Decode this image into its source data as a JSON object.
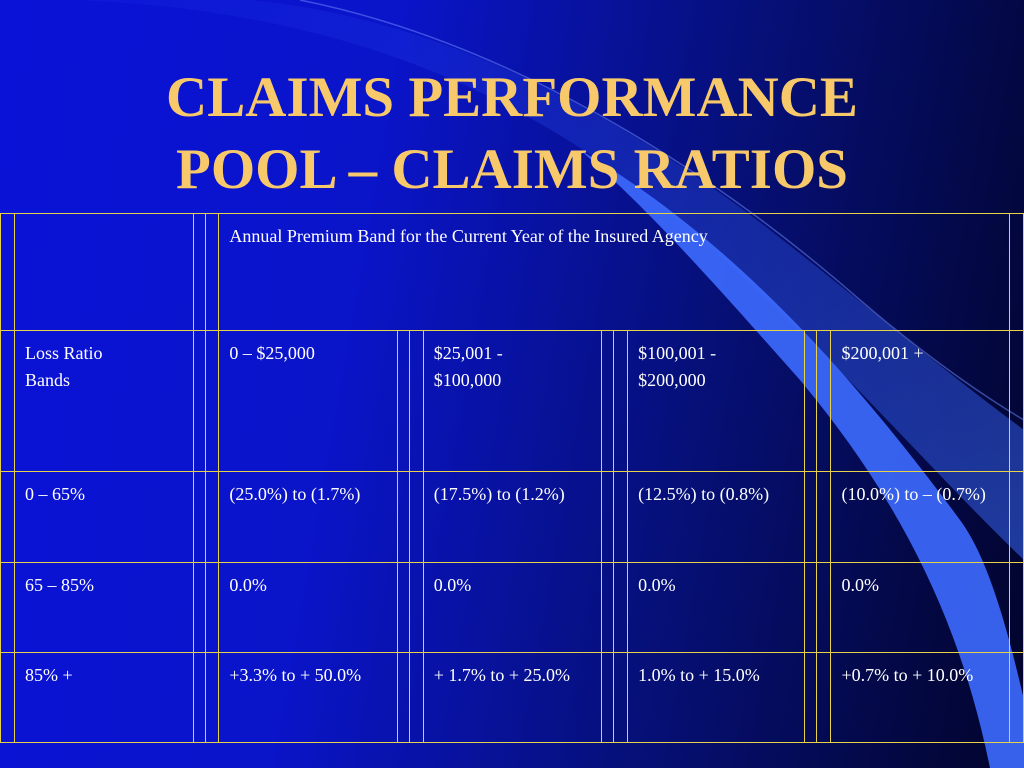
{
  "title": {
    "line1": "CLAIMS PERFORMANCE",
    "line2": "POOL – CLAIMS RATIOS"
  },
  "table": {
    "header": "Annual Premium Band for the Current Year of the Insured Agency",
    "corner_label": "Loss Ratio Bands",
    "bands": [
      "0 – $25,000",
      "$25,001 - $100,000",
      "$100,001 - $200,000",
      "$200,001 +"
    ],
    "rows": [
      {
        "band": "0 – 65%",
        "values": [
          "(25.0%) to (1.7%)",
          "(17.5%) to (1.2%)",
          "(12.5%) to (0.8%)",
          "(10.0%) to – (0.7%)"
        ]
      },
      {
        "band": "65 – 85%",
        "values": [
          "0.0%",
          "0.0%",
          "0.0%",
          "0.0%"
        ]
      },
      {
        "band": "85% +",
        "values": [
          "+3.3% to + 50.0%",
          "+ 1.7% to + 25.0%",
          "1.0% to + 15.0%",
          "+0.7% to + 10.0%"
        ]
      }
    ]
  },
  "colors": {
    "title": "#f7c96a",
    "border": "#e8d24a",
    "text": "#ffffff",
    "background_left": "#0a12d8",
    "background_right": "#02042a"
  }
}
